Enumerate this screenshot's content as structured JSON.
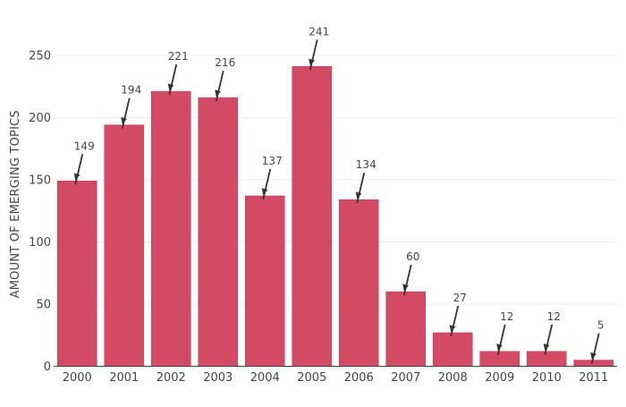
{
  "chart_data": {
    "type": "bar",
    "categories": [
      "2000",
      "2001",
      "2002",
      "2003",
      "2004",
      "2005",
      "2006",
      "2007",
      "2008",
      "2009",
      "2010",
      "2011"
    ],
    "values": [
      149,
      194,
      221,
      216,
      137,
      241,
      134,
      60,
      27,
      12,
      12,
      5
    ],
    "title": "",
    "xlabel": "",
    "ylabel": "AMOUNT OF EMERGING TOPICS",
    "ylim": [
      0,
      275
    ],
    "yticks": [
      0,
      50,
      100,
      150,
      200,
      250
    ],
    "grid": true,
    "data_labels": "arrow annotations above bars",
    "colors": {
      "bar": "#d24a64",
      "bar_edge": "#c23a55",
      "grid": "#eeeeee",
      "arrow": "#333333"
    }
  }
}
